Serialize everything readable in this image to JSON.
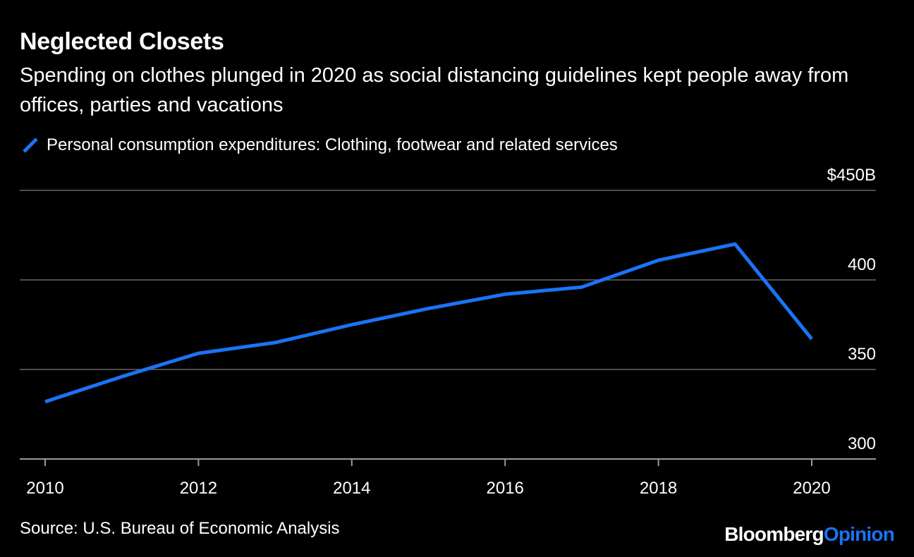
{
  "title": "Neglected Closets",
  "subtitle": "Spending on clothes plunged in 2020 as social distancing guidelines kept people away from offices, parties and vacations",
  "source": "Source: U.S. Bureau of Economic Analysis",
  "logo": {
    "part1": "Bloomberg",
    "part2": "Opinion",
    "color1": "#ffffff",
    "color2": "#1a73f5"
  },
  "colors": {
    "background": "#000000",
    "gridline": "#666666",
    "text": "#ffffff"
  },
  "chart_data": {
    "type": "line",
    "title": "Neglected Closets",
    "legend_position": "top-left",
    "grid": true,
    "y_axis_side": "right",
    "ylim": [
      300,
      450
    ],
    "yticks": [
      {
        "value": 450,
        "label": "$450B"
      },
      {
        "value": 400,
        "label": "400"
      },
      {
        "value": 350,
        "label": "350"
      },
      {
        "value": 300,
        "label": "300"
      }
    ],
    "xlim": [
      2010,
      2020
    ],
    "xticks": [
      {
        "value": 2010,
        "label": "2010"
      },
      {
        "value": 2012,
        "label": "2012"
      },
      {
        "value": 2014,
        "label": "2014"
      },
      {
        "value": 2016,
        "label": "2016"
      },
      {
        "value": 2018,
        "label": "2018"
      },
      {
        "value": 2020,
        "label": "2020"
      }
    ],
    "series": [
      {
        "name": "Personal consumption expenditures: Clothing, footwear and related services",
        "color": "#1a73f5",
        "x": [
          2010,
          2011,
          2012,
          2013,
          2014,
          2015,
          2016,
          2017,
          2018,
          2019,
          2020
        ],
        "values": [
          332,
          346,
          359,
          365,
          375,
          384,
          392,
          396,
          411,
          420,
          367
        ]
      }
    ]
  }
}
